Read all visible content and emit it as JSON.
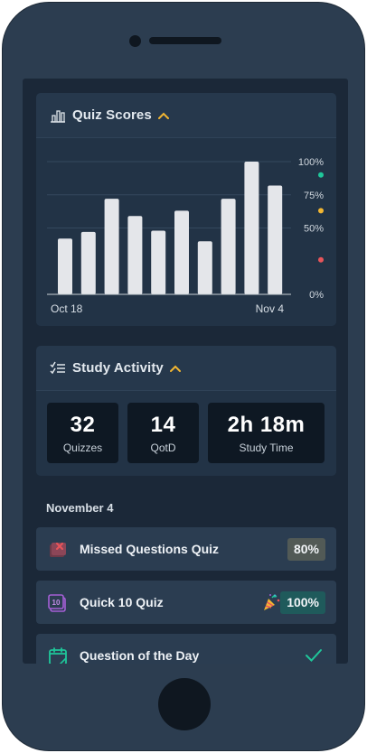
{
  "quiz_scores_card": {
    "title": "Quiz Scores",
    "icon": "bar-chart-icon",
    "expand_icon": "chevron-up-icon"
  },
  "chart_data": {
    "type": "bar",
    "x_start_label": "Oct 18",
    "x_end_label": "Nov 4",
    "y_ticks": [
      "100%",
      "75%",
      "50%",
      "0%"
    ],
    "ylim": [
      0,
      100
    ],
    "values": [
      42,
      47,
      72,
      59,
      48,
      63,
      40,
      72,
      100,
      82
    ],
    "bar_color": "#e4e6ea",
    "threshold_markers": [
      {
        "level": 90,
        "color": "#1fc79a"
      },
      {
        "level": 63,
        "color": "#f2b632"
      },
      {
        "level": 26,
        "color": "#e8555a"
      }
    ]
  },
  "study_activity_card": {
    "title": "Study Activity",
    "icon": "checklist-icon",
    "expand_icon": "chevron-up-icon",
    "stats": [
      {
        "value": "32",
        "label": "Quizzes"
      },
      {
        "value": "14",
        "label": "QotD"
      },
      {
        "value": "2h 18m",
        "label": "Study Time"
      }
    ]
  },
  "activity_list": {
    "date": "November 4",
    "items": [
      {
        "label": "Missed Questions Quiz",
        "score": "80%",
        "icon": "missed-questions-icon"
      },
      {
        "label": "Quick 10 Quiz",
        "score": "100%",
        "icon": "quick-10-icon",
        "badge_icon": "party-popper-icon"
      },
      {
        "label": "Question of the Day",
        "icon": "calendar-icon",
        "status_icon": "checkmark-icon"
      }
    ]
  },
  "colors": {
    "accent_yellow": "#f2b632",
    "accent_green": "#1fc79a",
    "accent_purple": "#a45fd6",
    "accent_red": "#e8555a"
  }
}
